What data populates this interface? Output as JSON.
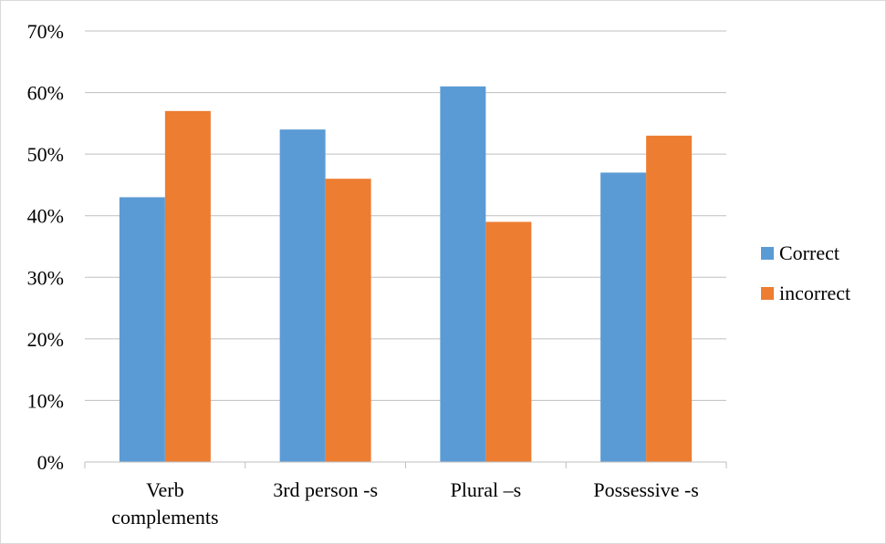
{
  "chart_data": {
    "type": "bar",
    "categories": [
      "Verb complements",
      "3rd person -s",
      "Plural –s",
      "Possessive -s"
    ],
    "category_lines": [
      [
        "Verb",
        "complements"
      ],
      [
        "3rd person -s"
      ],
      [
        "Plural –s"
      ],
      [
        "Possessive -s"
      ]
    ],
    "series": [
      {
        "name": "Correct",
        "color": "#5b9bd5",
        "values": [
          43,
          54,
          61,
          47
        ]
      },
      {
        "name": "incorrect",
        "color": "#ed7d31",
        "values": [
          57,
          46,
          39,
          53
        ]
      }
    ],
    "ylim": [
      0,
      70
    ],
    "yticks": [
      0,
      10,
      20,
      30,
      40,
      50,
      60,
      70
    ],
    "ytick_labels": [
      "0%",
      "10%",
      "20%",
      "30%",
      "40%",
      "50%",
      "60%",
      "70%"
    ],
    "title": "",
    "xlabel": "",
    "ylabel": "",
    "grid": true,
    "legend_position": "right"
  }
}
